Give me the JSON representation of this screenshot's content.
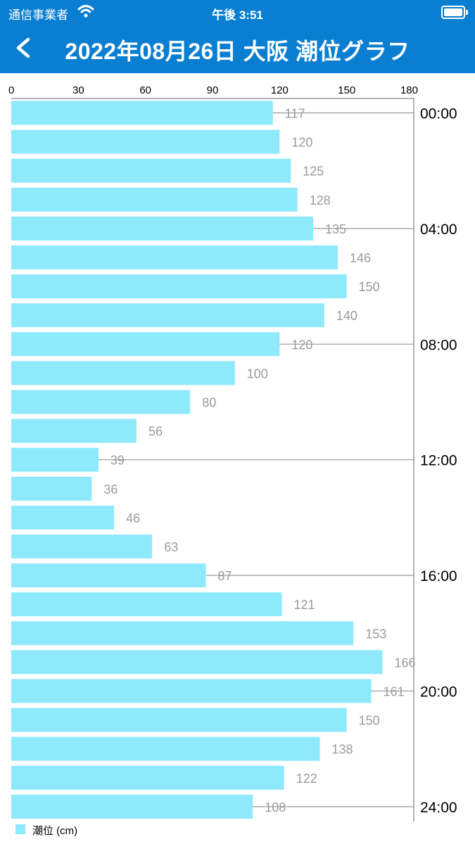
{
  "status_bar": {
    "carrier": "通信事業者",
    "time": "午後 3:51"
  },
  "header": {
    "title": "2022年08月26日 大阪 潮位グラフ"
  },
  "colors": {
    "header_bg": "#0a7fd1",
    "bar_fill": "#8ee9fc"
  },
  "chart_data": {
    "type": "bar",
    "orientation": "horizontal",
    "title": "",
    "xlim": [
      0,
      180
    ],
    "x_ticks": [
      0,
      30,
      60,
      90,
      120,
      150,
      180
    ],
    "time_ticks": [
      "00:00",
      "04:00",
      "08:00",
      "12:00",
      "16:00",
      "20:00",
      "24:00"
    ],
    "grid": true,
    "legend_position": "bottom-left",
    "series": [
      {
        "name": "潮位 (cm)",
        "values": [
          117,
          120,
          125,
          128,
          135,
          146,
          150,
          140,
          120,
          100,
          80,
          56,
          39,
          36,
          46,
          63,
          87,
          121,
          153,
          166,
          161,
          150,
          138,
          122,
          108
        ]
      }
    ]
  }
}
